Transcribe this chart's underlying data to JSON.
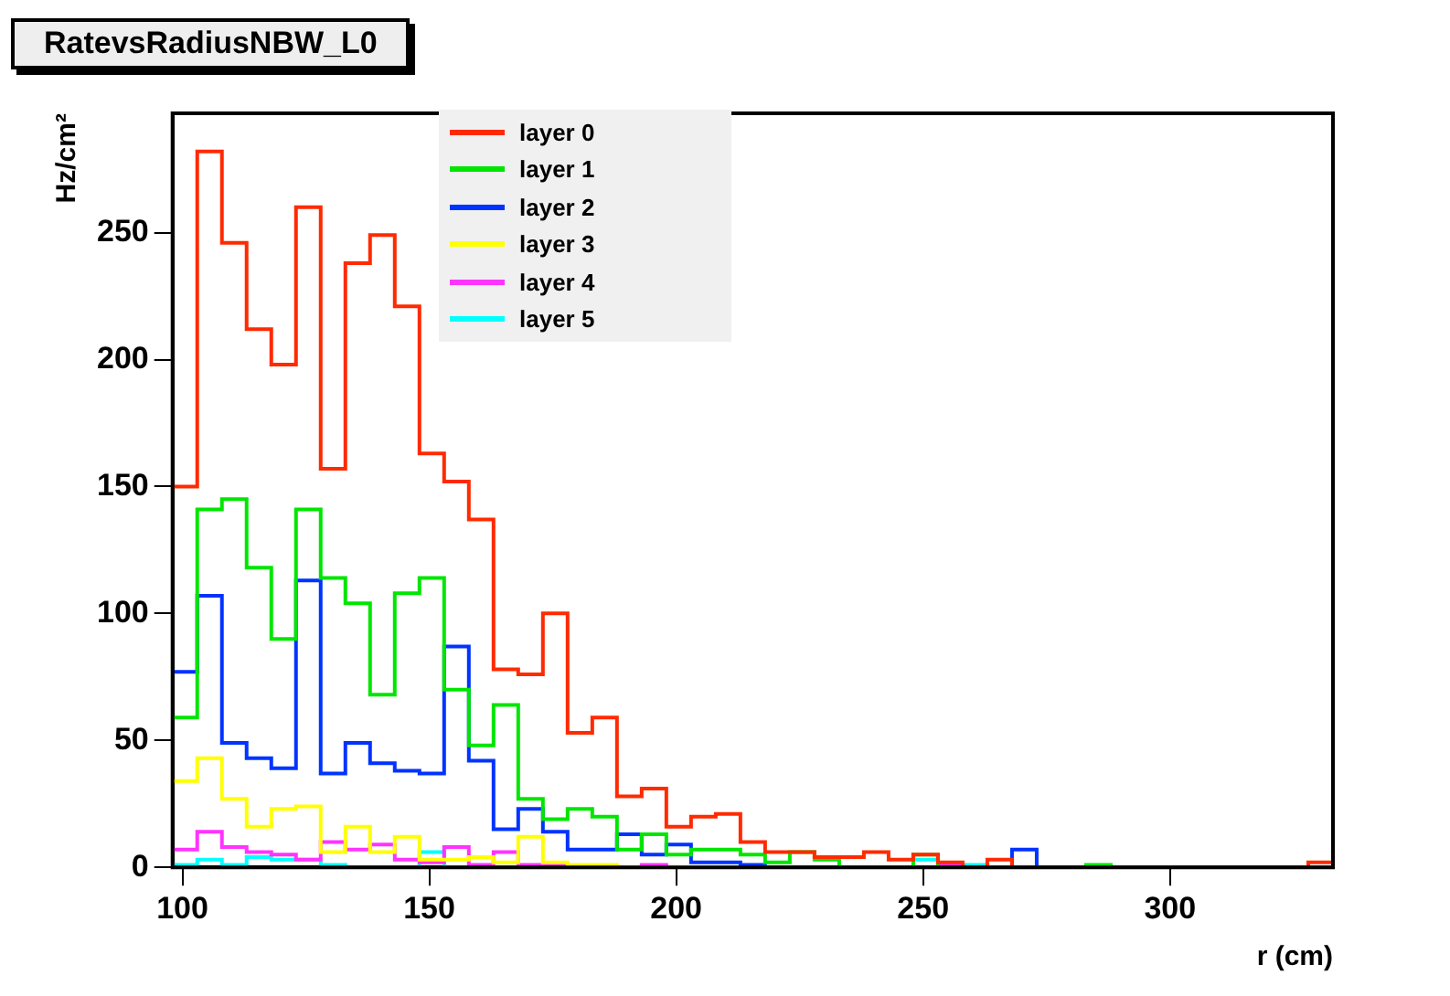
{
  "chart_data": {
    "type": "histogram",
    "title": "RatevsRadiusNBW_L0",
    "xlabel": "r (cm)",
    "ylabel": "Hz/cm²",
    "bins": [
      98,
      103,
      108,
      113,
      118,
      123,
      128,
      133,
      138,
      143,
      148,
      153,
      158,
      163,
      168,
      173,
      178,
      183,
      188,
      193,
      198,
      203,
      208,
      213,
      218,
      223,
      228,
      233,
      238,
      243,
      248,
      253,
      258,
      263,
      268,
      273,
      278,
      283,
      288,
      293,
      298,
      303,
      308,
      313,
      318,
      323,
      328,
      333
    ],
    "xlim": [
      98,
      333
    ],
    "xticks": [
      100,
      150,
      200,
      250,
      300
    ],
    "ylim": [
      0,
      297
    ],
    "yticks": [
      0,
      50,
      100,
      150,
      200,
      250
    ],
    "grid": false,
    "legend": "top",
    "line_style": "solid",
    "marker": "none",
    "series": [
      {
        "name": "layer 0",
        "color": "#ff2a00",
        "values": [
          150,
          282,
          246,
          212,
          198,
          260,
          157,
          238,
          249,
          221,
          163,
          152,
          137,
          78,
          76,
          100,
          53,
          59,
          28,
          31,
          16,
          20,
          21,
          10,
          6,
          6,
          4,
          4,
          6,
          3,
          5,
          2,
          0,
          3,
          0,
          0,
          0,
          0,
          0,
          0,
          0,
          0,
          0,
          0,
          0,
          0,
          2
        ]
      },
      {
        "name": "layer 1",
        "color": "#00e600",
        "values": [
          59,
          141,
          145,
          118,
          90,
          141,
          114,
          104,
          68,
          108,
          114,
          70,
          48,
          64,
          27,
          19,
          23,
          20,
          7,
          13,
          5,
          7,
          7,
          5,
          2,
          6,
          3,
          0,
          0,
          0,
          5,
          0,
          0,
          0,
          0,
          0,
          0,
          1,
          0,
          0,
          0,
          0,
          0,
          0,
          0,
          0,
          0
        ]
      },
      {
        "name": "layer 2",
        "color": "#0033ff",
        "values": [
          77,
          107,
          49,
          43,
          39,
          113,
          37,
          49,
          41,
          38,
          37,
          87,
          42,
          15,
          23,
          14,
          7,
          7,
          13,
          5,
          9,
          2,
          2,
          1,
          0,
          0,
          0,
          0,
          0,
          0,
          0,
          0,
          0,
          0,
          7,
          0,
          0,
          0,
          0,
          0,
          0,
          0,
          0,
          0,
          0,
          0,
          0
        ]
      },
      {
        "name": "layer 3",
        "color": "#ffff00",
        "values": [
          34,
          43,
          27,
          16,
          23,
          24,
          6,
          16,
          6,
          12,
          3,
          3,
          4,
          2,
          12,
          2,
          1,
          1,
          0,
          0,
          0,
          0,
          0,
          0,
          0,
          0,
          0,
          0,
          0,
          0,
          0,
          0,
          0,
          0,
          0,
          0,
          0,
          0,
          0,
          0,
          0,
          0,
          0,
          0,
          0,
          0,
          0
        ]
      },
      {
        "name": "layer 4",
        "color": "#ff33ff",
        "values": [
          7,
          14,
          8,
          6,
          5,
          3,
          10,
          7,
          9,
          3,
          2,
          8,
          1,
          6,
          1,
          1,
          0,
          0,
          0,
          1,
          0,
          0,
          0,
          0,
          0,
          0,
          0,
          0,
          0,
          0,
          0,
          1,
          0,
          0,
          0,
          0,
          0,
          0,
          0,
          0,
          0,
          0,
          0,
          0,
          0,
          0,
          0
        ]
      },
      {
        "name": "layer 5",
        "color": "#00ffff",
        "values": [
          1,
          3,
          1,
          4,
          3,
          3,
          1,
          0,
          0,
          0,
          6,
          0,
          0,
          0,
          0,
          0,
          0,
          0,
          0,
          0,
          0,
          0,
          0,
          0,
          0,
          0,
          0,
          0,
          0,
          0,
          3,
          0,
          1,
          0,
          0,
          0,
          0,
          0,
          0,
          0,
          0,
          0,
          0,
          0,
          0,
          0,
          0
        ]
      }
    ]
  }
}
